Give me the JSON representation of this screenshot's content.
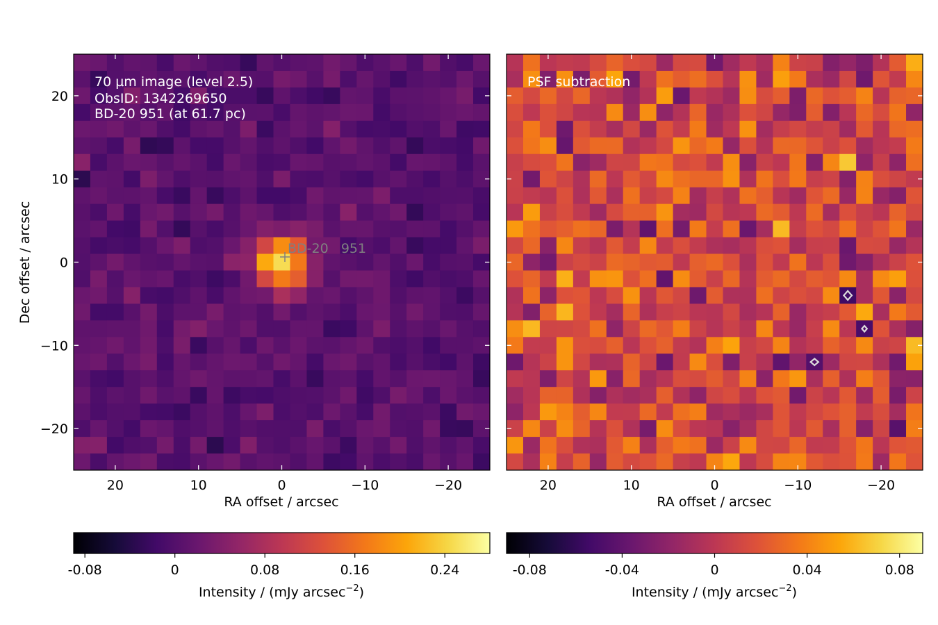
{
  "chart_data": [
    {
      "type": "heatmap",
      "panel": "left",
      "annotation_lines": [
        "70 µm image (level 2.5)",
        "ObsID: 1342269650",
        "BD-20 951 (at 61.7 pc)"
      ],
      "source_label": "BD-20   951",
      "xlabel": "RA offset / arcsec",
      "ylabel": "Dec offset / arcsec",
      "x_ticks": [
        20,
        10,
        0,
        -10,
        -20
      ],
      "x_tick_labels": [
        "20",
        "10",
        "0",
        "−10",
        "−20"
      ],
      "y_ticks": [
        20,
        10,
        0,
        -10,
        -20
      ],
      "y_tick_labels": [
        "20",
        "10",
        "0",
        "−10",
        "−20"
      ],
      "xlim": [
        25,
        -25
      ],
      "ylim": [
        -25,
        25
      ],
      "pixel_size_arcsec": 2,
      "grid_size": 25,
      "source_position": [
        0,
        0
      ],
      "colormap": "inferno",
      "colorbar": {
        "label": "Intensity / (mJy arcsec",
        "label_exponent": "−2",
        "label_close": ")",
        "ticks": [
          -0.08,
          0,
          0.08,
          0.16,
          0.24
        ],
        "tick_labels": [
          "-0.08",
          "0",
          "0.08",
          "0.16",
          "0.24"
        ],
        "range": [
          -0.09,
          0.28
        ]
      }
    },
    {
      "type": "heatmap",
      "panel": "right",
      "annotation_lines": [
        "PSF subtraction"
      ],
      "xlabel": "RA offset / arcsec",
      "x_ticks": [
        20,
        10,
        0,
        -10,
        -20
      ],
      "x_tick_labels": [
        "20",
        "10",
        "0",
        "−10",
        "−20"
      ],
      "xlim": [
        25,
        -25
      ],
      "ylim": [
        -25,
        25
      ],
      "pixel_size_arcsec": 2,
      "grid_size": 25,
      "colormap": "inferno",
      "contours": [
        "black (positive residuals)",
        "white (negative residuals)"
      ],
      "colorbar": {
        "label": "Intensity / (mJy arcsec",
        "label_exponent": "−2",
        "label_close": ")",
        "ticks": [
          -0.08,
          -0.04,
          0,
          0.04,
          0.08
        ],
        "tick_labels": [
          "-0.08",
          "-0.04",
          "0",
          "0.04",
          "0.08"
        ],
        "range": [
          -0.09,
          0.09
        ]
      }
    }
  ]
}
